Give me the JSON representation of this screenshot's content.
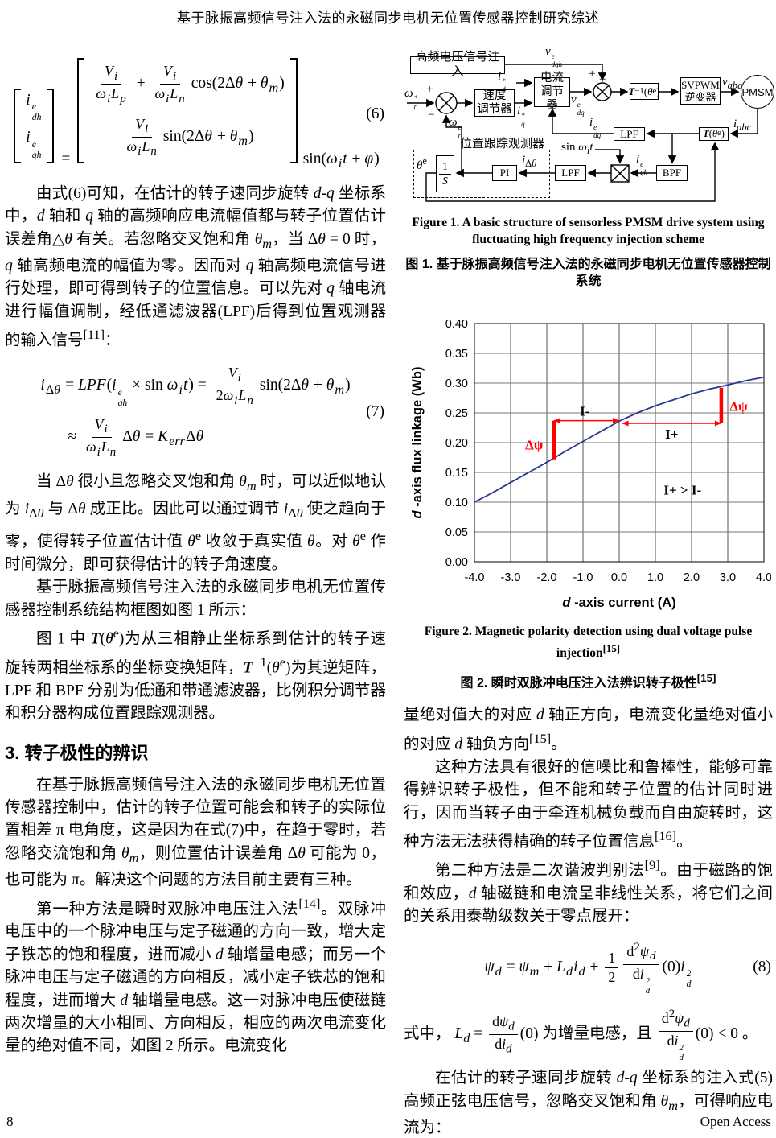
{
  "page": {
    "title": "基于脉振高频信号注入法的永磁同步电机无位置传感器控制研究综述",
    "page_number": "8",
    "open_access": "Open Access"
  },
  "left": {
    "eq6_body": "<span class='mat'><span class='bl'></span><span class='vcol'><span><i>i</i><span class='ss'><span class='t'>e</span><span class='b'>dh</span></span></span><span><i>i</i><span class='ss'><span class='t'>e</span><span class='b'>qh</span></span></span></span><span class='br'></span></span><span class='meq'>=</span><span class='mat'><span class='bl'></span><span class='vcol2'><span><span class='frac'><span class='nu'><i>V</i><sub><i>i</i></sub></span><span class='de'><i>ω</i><sub><i>i</i></sub><i>L</i><sub><i>p</i></sub></span></span> + <span class='frac'><span class='nu'><i>V</i><sub><i>i</i></sub></span><span class='de'><i>ω</i><sub><i>i</i></sub><i>L</i><sub><i>n</i></sub></span></span>cos(2Δ<i>θ</i> + <i>θ</i><sub><i>m</i></sub>)</span><span><span class='frac'><span class='nu'><i>V</i><sub><i>i</i></sub></span><span class='de'><i>ω</i><sub><i>i</i></sub><i>L</i><sub><i>n</i></sub></span></span>sin(2Δ<i>θ</i> + <i>θ</i><sub><i>m</i></sub>)</span></span><span class='br'></span></span><span class='mtrail'>sin(<i>ω</i><sub><i>i</i></sub><i>t</i> + <i>φ</i>)</span>",
    "eq6_no": "(6)",
    "para1": "由式(6)可知，在估计的转子速同步旋转 <i>d</i>-<i>q</i> 坐标系中，<i>d</i> 轴和 <i>q</i> 轴的高频响应电流幅值都与转子位置估计误差角△<i>θ</i> 有关。若忽略交叉饱和角 <i>θ</i><sub><i>m</i></sub>，当 Δ<i>θ</i> = 0 时，<i>q</i> 轴高频电流的幅值为零。因而对 <i>q</i> 轴高频电流信号进行处理，即可得到转子的位置信息。可以先对 <i>q</i> 轴电流进行幅值调制，经低通滤波器(LPF)后得到位置观测器的输入信号<sup>[11]</sup>：",
    "eq7_l1": "<i>i</i><sub>Δ<i>θ</i></sub> = <i>LPF</i>(<i>i</i><span class='ss'><span class='t'>e</span><span class='b'>qh</span></span> × sin <i>ω</i><sub><i>i</i></sub><i>t</i>) = <span class='frac'><span class='nu'><i>V</i><sub><i>i</i></sub></span><span class='de'>2<i>ω</i><sub><i>i</i></sub><i>L</i><sub><i>n</i></sub></span></span>sin(2Δ<i>θ</i> + <i>θ</i><sub><i>m</i></sub>)",
    "eq7_l2": "≈ <span class='frac'><span class='nu'><i>V</i><sub><i>i</i></sub></span><span class='de'><i>ω</i><sub><i>i</i></sub><i>L</i><sub><i>n</i></sub></span></span>Δ<i>θ</i> = <i>K</i><sub><i>err</i></sub>Δ<i>θ</i>",
    "eq7_no": "(7)",
    "para2": "当 Δ<i>θ</i> 很小且忽略交叉饱和角 <i>θ</i><sub><i>m</i></sub> 时，可以近似地认为 <i>i</i><sub>Δ<i>θ</i></sub> 与 Δ<i>θ</i> 成正比。因此可以通过调节 <i>i</i><sub>Δ<i>θ</i></sub> 使之趋向于零，使得转子位置估计值 <i>θ</i><sup>e</sup> 收敛于真实值 <i>θ</i>。对 <i>θ</i><sup>e</sup> 作时间微分，即可获得估计的转子角速度。",
    "para3": "基于脉振高频信号注入法的永磁同步电机无位置传感器控制系统结构框图如图 1 所示：",
    "para4": "图 1 中 <b><i>T</i></b>(<i>θ</i><sup>e</sup>)为从三相静止坐标系到估计的转子速旋转两相坐标系的坐标变换矩阵，<b><i>T</i></b><sup>−1</sup>(<i>θ</i><sup>e</sup>)为其逆矩阵，LPF 和 BPF 分别为低通和带通滤波器，比例积分调节器和积分器构成位置跟踪观测器。",
    "heading3": "3. 转子极性的辨识",
    "para5": "在基于脉振高频信号注入法的永磁同步电机无位置传感器控制中，估计的转子位置可能会和转子的实际位置相差 π 电角度，这是因为在式(7)中，在趋于零时，若忽略交流饱和角 <i>θ</i><sub><i>m</i></sub>，则位置估计误差角 Δ<i>θ</i> 可能为 0，也可能为 π。解决这个问题的方法目前主要有三种。",
    "para6": "第一种方法是瞬时双脉冲电压注入法<sup>[14]</sup>。双脉冲电压中的一个脉冲电压与定子磁通的方向一致，增大定子铁芯的饱和程度，进而减小 <i>d</i> 轴增量电感；而另一个脉冲电压与定子磁通的方向相反，减小定子铁芯的饱和程度，进而增大 <i>d</i> 轴增量电感。这一对脉冲电压使磁链两次增量的大小相同、方向相反，相应的两次电流变化量的绝对值不同，如图 2 所示。电流变化"
  },
  "figure1": {
    "caption_en": "Figure 1. A basic structure of sensorless PMSM drive system using fluctuating high frequency injection scheme",
    "caption_zh": "图 1. 基于脉振高频信号注入法的永磁同步电机无位置传感器控制系统",
    "blocks": {
      "injection": "高频电压信号注入",
      "speed_reg": "速度<br>调节器",
      "current_reg": "电流<br>调节器",
      "t_inverse": "<b><i>T</i></b><sup>−1</sup>(<i>θ</i><sup>e</sup>)",
      "svpwm": "SVPWM<br>逆变器",
      "pmsm": "PMSM",
      "t_forward": "<b><i>T</i></b>(<i>θ</i><sup>e</sup>)",
      "lpf_top": "LPF",
      "bpf": "BPF",
      "lpf_bottom": "LPF",
      "pi": "PI",
      "integrator": "<span class='frac'><span class='nu'>1</span><span class='de'><i>S</i></span></span>",
      "observer": "位置跟踪观测器"
    },
    "signals": {
      "v_dqh": "<i>v</i><span class='ss'><span class='t'>e</span><span class='b'>dqh</span></span>",
      "omega_ref": "<i>ω</i><span class='ss'><span class='t'>*</span><span class='b'>r</span></span>",
      "omega_est": "<i>ω</i><span class='ss'><span class='t'>e</span><span class='b'>r</span></span>",
      "id_ref": "<i>i</i><span class='ss'><span class='t'>*</span><span class='b'>d</span></span>",
      "iq_ref": "<i>i</i><span class='ss'><span class='t'>*</span><span class='b'>q</span></span>",
      "v_dq": "<i>v</i><span class='ss'><span class='t'>e</span><span class='b'>dq</span></span>",
      "v_abc": "<i>v</i><sub><i>abc</i></sub>",
      "i_abc": "<i>i</i><sub><i>abc</i></sub>",
      "i_dq": "<i>i</i><span class='ss'><span class='t'>e</span><span class='b'>dq</span></span>",
      "i_qh": "<i>i</i><span class='ss'><span class='t'>e</span><span class='b'>qh</span></span>",
      "sin_wt": "sin <i>ω</i><sub><i>i</i></sub><i>t</i>",
      "i_dtheta": "<i>i</i><sub>Δ<i>θ</i></sub>",
      "theta_e": "<i>θ</i><sup>e</sup>",
      "plus": "+",
      "minus": "−"
    }
  },
  "figure2": {
    "caption_en": "Figure 2. Magnetic polarity detection using dual voltage pulse injection<sup>[15]</sup>",
    "caption_zh": "图 2. 瞬时双脉冲电压注入法辨识转子极性<sup>[15]</sup>"
  },
  "right": {
    "para1": "量绝对值大的对应 <i>d</i> 轴正方向，电流变化量绝对值小的对应 <i>d</i> 轴负方向<sup>[15]</sup>。",
    "para2": "这种方法具有很好的信噪比和鲁棒性，能够可靠得辨识转子极性，但不能和转子位置的估计同时进行，因而当转子由于牵连机械负载而自由旋转时，这种方法无法获得精确的转子位置信息<sup>[16]</sup>。",
    "para3": "第二种方法是二次谐波判别法<sup>[9]</sup>。由于磁路的饱和效应，<i>d</i> 轴磁链和电流呈非线性关系，将它们之间的关系用泰勒级数关于零点展开：",
    "eq8_body": "<i>ψ</i><sub><i>d</i></sub> = <i>ψ</i><sub><i>m</i></sub> + <i>L</i><sub><i>d</i></sub><i>i</i><sub><i>d</i></sub> + <span class='frac'><span class='nu'>1</span><span class='de'>2</span></span><span class='frac'><span class='nu'>d<sup>2</sup><i>ψ</i><sub><i>d</i></sub></span><span class='de'>d<i>i</i><span class='ss'><span class='t'>2</span><span class='b'>d</span></span></span></span>(0)<i>i</i><span class='ss'><span class='t'>2</span><span class='b'>d</span></span>",
    "eq8_no": "(8)",
    "para4": "式中， <i>L</i><sub><i>d</i></sub> = <span class='frac'><span class='nu'>d<i>ψ</i><sub><i>d</i></sub></span><span class='de'>d<i>i</i><sub><i>d</i></sub></span></span>(0) 为增量电感，且 <span class='frac'><span class='nu'>d<sup>2</sup><i>ψ</i><sub><i>d</i></sub></span><span class='de'>d<i>i</i><span class='ss'><span class='t'>2</span><span class='b'>d</span></span></span></span>(0) &lt; 0 。",
    "para5": "在估计的转子速同步旋转 <i>d</i>-<i>q</i> 坐标系的注入式(5)高频正弦电压信号，忽略交叉饱和角 <i>θ</i><sub><i>m</i></sub>，可得响应电流为："
  },
  "chart_data": {
    "type": "line",
    "title": "",
    "xlabel": "d-axis current (A)",
    "ylabel": "d-axis flux linkage (Wb)",
    "xlim": [
      -4.0,
      4.0
    ],
    "ylim": [
      0.0,
      0.4
    ],
    "xticks": [
      -4,
      -3,
      -2,
      -1,
      0,
      1,
      2,
      3,
      4
    ],
    "xtick_labels": [
      "-4.0",
      "-3.0",
      "-2.0",
      "-1.0",
      "0.0",
      "1.0",
      "2.0",
      "3.0",
      "4.0"
    ],
    "yticks": [
      0,
      0.05,
      0.1,
      0.15,
      0.2,
      0.25,
      0.3,
      0.35,
      0.4
    ],
    "ytick_labels": [
      "0.00",
      "0.05",
      "0.10",
      "0.15",
      "0.20",
      "0.25",
      "0.30",
      "0.35",
      "0.40"
    ],
    "grid": true,
    "legend_position": "none",
    "series": [
      {
        "name": "d-axis flux linkage vs d-axis current",
        "color": "#2b3990",
        "x": [
          -4,
          -3.5,
          -3,
          -2.5,
          -2,
          -1.5,
          -1,
          -0.5,
          0,
          0.5,
          1,
          1.5,
          2,
          2.5,
          3,
          3.5,
          4
        ],
        "y": [
          0.1,
          0.116,
          0.133,
          0.15,
          0.167,
          0.185,
          0.202,
          0.219,
          0.236,
          0.25,
          0.262,
          0.272,
          0.282,
          0.29,
          0.297,
          0.304,
          0.31
        ]
      }
    ],
    "annotations": {
      "accent_color": "#ff0000",
      "arrows": [
        {
          "x1": 0.0,
          "y1": 0.237,
          "x2": -1.8,
          "y2": 0.237
        },
        {
          "x1": 0.08,
          "y1": 0.2325,
          "x2": 2.82,
          "y2": 0.2325
        }
      ],
      "bars": [
        {
          "x": -1.8,
          "y1": 0.172,
          "y2": 0.237
        },
        {
          "x": 2.82,
          "y1": 0.2325,
          "y2": 0.292
        }
      ],
      "labels": [
        {
          "text": "I-",
          "x": -0.95,
          "y": 0.2535,
          "color": "#000000"
        },
        {
          "text": "I+",
          "x": 1.45,
          "y": 0.215,
          "color": "#000000"
        },
        {
          "text": "Δψ",
          "x": -2.35,
          "y": 0.1965,
          "color": "#ff0000"
        },
        {
          "text": "Δψ",
          "x": 3.3,
          "y": 0.2615,
          "color": "#ff0000"
        },
        {
          "text": "I+ > I-",
          "x": 1.75,
          "y": 0.121,
          "color": "#000000"
        }
      ]
    }
  }
}
